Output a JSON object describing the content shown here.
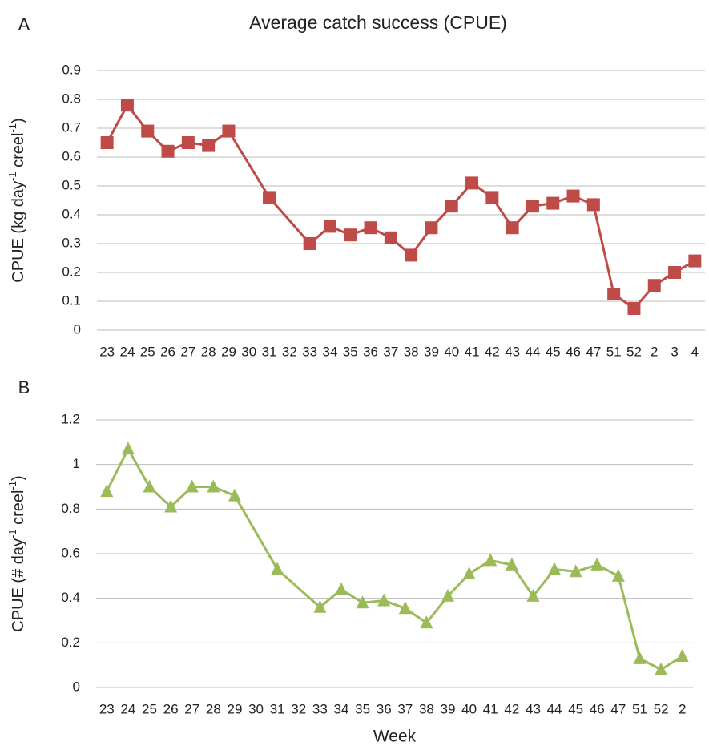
{
  "chart_data": [
    {
      "type": "line",
      "panel": "A",
      "title": "Average catch success (CPUE)",
      "y_label": [
        "CPUE (kg  day",
        "-1",
        " creel",
        "-1",
        ")"
      ],
      "categories": [
        "23",
        "24",
        "25",
        "26",
        "27",
        "28",
        "29",
        "30",
        "31",
        "32",
        "33",
        "34",
        "35",
        "36",
        "37",
        "38",
        "39",
        "40",
        "41",
        "42",
        "43",
        "44",
        "45",
        "46",
        "47",
        "51",
        "52",
        "2",
        "3",
        "4"
      ],
      "series": [
        {
          "color": "#be4b48",
          "marker": "square",
          "values": [
            0.65,
            0.78,
            0.69,
            0.62,
            0.65,
            0.64,
            0.69,
            null,
            0.46,
            null,
            0.3,
            0.36,
            0.33,
            0.355,
            0.32,
            0.26,
            0.355,
            0.43,
            0.51,
            0.46,
            0.355,
            0.43,
            0.44,
            0.465,
            0.435,
            0.125,
            0.075,
            0.155,
            0.2,
            0.24
          ]
        }
      ],
      "ylim": [
        0,
        0.9
      ],
      "yticks": [
        0,
        0.1,
        0.2,
        0.3,
        0.4,
        0.5,
        0.6,
        0.7,
        0.8,
        0.9
      ],
      "grid": true
    },
    {
      "type": "line",
      "panel": "B",
      "x_label": "Week",
      "y_label": [
        "CPUE (#  day",
        "-1",
        " creel",
        "-1",
        ")"
      ],
      "categories": [
        "23",
        "24",
        "25",
        "26",
        "27",
        "28",
        "29",
        "30",
        "31",
        "32",
        "33",
        "34",
        "35",
        "36",
        "37",
        "38",
        "39",
        "40",
        "41",
        "42",
        "43",
        "44",
        "45",
        "46",
        "47",
        "51",
        "52",
        "2"
      ],
      "series": [
        {
          "color": "#9bbb59",
          "marker": "triangle",
          "values": [
            0.88,
            1.07,
            0.9,
            0.81,
            0.9,
            0.9,
            0.86,
            null,
            0.53,
            null,
            0.36,
            0.44,
            0.38,
            0.39,
            0.355,
            0.29,
            0.41,
            0.51,
            0.57,
            0.55,
            0.41,
            0.53,
            0.52,
            0.55,
            0.5,
            0.13,
            0.08,
            0.14
          ]
        }
      ],
      "ylim": [
        0,
        1.2
      ],
      "yticks": [
        0,
        0.2,
        0.4,
        0.6,
        0.8,
        1,
        1.2
      ],
      "grid": true
    }
  ]
}
